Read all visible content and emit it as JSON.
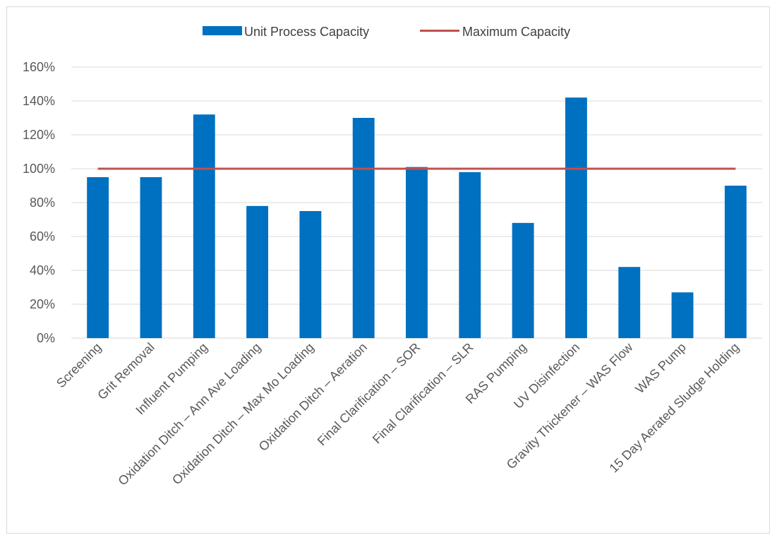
{
  "chart_data": {
    "type": "bar",
    "title": "",
    "xlabel": "",
    "ylabel": "",
    "categories": [
      "Screening",
      "Grit Removal",
      "Influent Pumping",
      "Oxidation Ditch – Ann Ave Loading",
      "Oxidation Ditch – Max Mo Loading",
      "Oxidation Ditch – Aeration",
      "Final Clarification – SOR",
      "Final Clarification – SLR",
      "RAS Pumping",
      "UV Disinfection",
      "Gravity Thickener – WAS Flow",
      "WAS Pump",
      "15 Day Aerated Sludge Holding"
    ],
    "series": [
      {
        "name": "Unit Process Capacity",
        "type": "bar",
        "color": "#0070C0",
        "values": [
          95,
          95,
          132,
          78,
          75,
          130,
          101,
          98,
          68,
          142,
          42,
          27,
          90
        ]
      },
      {
        "name": "Maximum Capacity",
        "type": "line",
        "color": "#C0504D",
        "values": [
          100,
          100,
          100,
          100,
          100,
          100,
          100,
          100,
          100,
          100,
          100,
          100,
          100
        ]
      }
    ],
    "ylim": [
      0,
      160
    ],
    "yticks": [
      "0%",
      "20%",
      "40%",
      "60%",
      "80%",
      "100%",
      "120%",
      "140%",
      "160%"
    ],
    "grid": true,
    "legend_position": "top"
  }
}
